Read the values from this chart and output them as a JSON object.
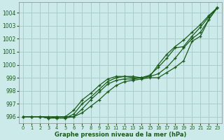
{
  "xlabel": "Graphe pression niveau de la mer (hPa)",
  "ylim": [
    995.5,
    1004.8
  ],
  "xlim": [
    -0.5,
    23.5
  ],
  "yticks": [
    996,
    997,
    998,
    999,
    1000,
    1001,
    1002,
    1003,
    1004
  ],
  "xticks": [
    0,
    1,
    2,
    3,
    4,
    5,
    6,
    7,
    8,
    9,
    10,
    11,
    12,
    13,
    14,
    15,
    16,
    17,
    18,
    19,
    20,
    21,
    22,
    23
  ],
  "bg_color": "#cceaea",
  "grid_color": "#aacccc",
  "line_color": "#1a5c1a",
  "series": [
    [
      996.0,
      996.0,
      996.0,
      996.0,
      996.0,
      996.0,
      996.0,
      996.3,
      996.8,
      997.3,
      997.9,
      998.4,
      998.7,
      998.8,
      998.9,
      999.0,
      999.0,
      999.4,
      999.8,
      1000.3,
      1001.8,
      1002.2,
      1003.5,
      1004.4
    ],
    [
      996.0,
      996.0,
      996.0,
      995.9,
      995.9,
      995.9,
      996.0,
      996.6,
      997.3,
      997.9,
      998.5,
      998.8,
      998.9,
      998.9,
      999.0,
      999.1,
      999.3,
      999.8,
      1000.5,
      1001.3,
      1002.0,
      1002.5,
      1003.5,
      1004.4
    ],
    [
      996.0,
      996.0,
      996.0,
      995.9,
      995.9,
      995.9,
      996.2,
      997.0,
      997.5,
      998.1,
      998.7,
      999.0,
      999.1,
      999.0,
      999.0,
      999.2,
      999.8,
      1000.5,
      1001.3,
      1001.4,
      1002.2,
      1002.9,
      1003.7,
      1004.4
    ],
    [
      996.0,
      996.0,
      996.0,
      995.9,
      996.0,
      996.0,
      996.5,
      997.3,
      997.8,
      998.4,
      998.9,
      999.1,
      999.1,
      999.1,
      999.0,
      999.1,
      1000.0,
      1000.8,
      1001.4,
      1001.9,
      1002.5,
      1003.1,
      1003.8,
      1004.4
    ]
  ]
}
